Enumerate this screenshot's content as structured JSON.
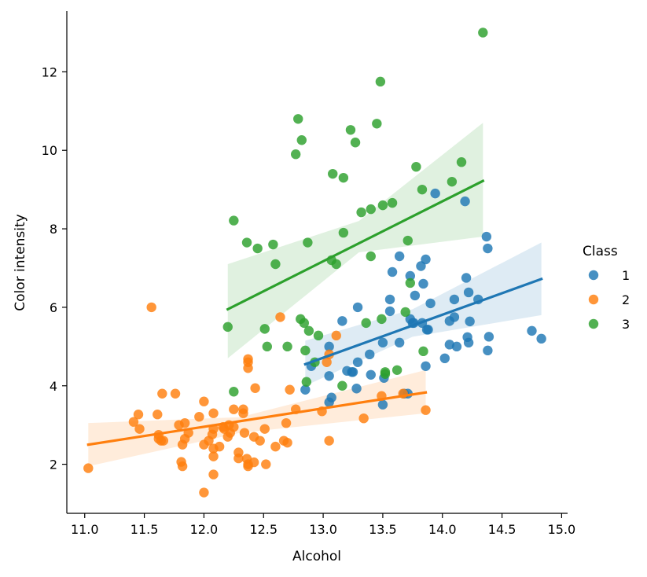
{
  "chart_data": {
    "type": "scatter",
    "title": "",
    "xlabel": "Alcohol",
    "ylabel": "Color intensity",
    "xlim": [
      10.85,
      15.05
    ],
    "ylim": [
      0.75,
      13.55
    ],
    "xticks": [
      "11.0",
      "11.5",
      "12.0",
      "12.5",
      "13.0",
      "13.5",
      "14.0",
      "14.5",
      "15.0"
    ],
    "yticks": [
      "2",
      "4",
      "6",
      "8",
      "10",
      "12"
    ],
    "xtick_values": [
      11.0,
      11.5,
      12.0,
      12.5,
      13.0,
      13.5,
      14.0,
      14.5,
      15.0
    ],
    "ytick_values": [
      2,
      4,
      6,
      8,
      10,
      12
    ],
    "grid": false,
    "legend": {
      "title": "Class",
      "placement": "right"
    },
    "series": [
      {
        "name": "1",
        "color": "#1f77b4",
        "points": [
          [
            12.85,
            3.9
          ],
          [
            12.9,
            4.5
          ],
          [
            13.05,
            4.25
          ],
          [
            13.05,
            5.0
          ],
          [
            13.07,
            3.7
          ],
          [
            13.05,
            3.58
          ],
          [
            13.16,
            5.65
          ],
          [
            13.2,
            4.38
          ],
          [
            13.24,
            4.35
          ],
          [
            13.25,
            4.35
          ],
          [
            13.28,
            3.93
          ],
          [
            13.29,
            4.6
          ],
          [
            13.29,
            6.0
          ],
          [
            13.39,
            4.8
          ],
          [
            13.4,
            4.28
          ],
          [
            13.5,
            3.52
          ],
          [
            13.51,
            4.2
          ],
          [
            13.5,
            5.1
          ],
          [
            13.56,
            5.9
          ],
          [
            13.56,
            6.2
          ],
          [
            13.58,
            6.9
          ],
          [
            13.64,
            7.3
          ],
          [
            13.64,
            5.1
          ],
          [
            13.68,
            3.8
          ],
          [
            13.71,
            3.8
          ],
          [
            13.73,
            5.7
          ],
          [
            13.73,
            6.8
          ],
          [
            13.75,
            5.6
          ],
          [
            13.77,
            6.3
          ],
          [
            13.76,
            5.6
          ],
          [
            13.82,
            7.05
          ],
          [
            13.83,
            5.6
          ],
          [
            13.84,
            6.6
          ],
          [
            13.86,
            7.22
          ],
          [
            13.86,
            4.5
          ],
          [
            13.87,
            5.43
          ],
          [
            13.88,
            5.43
          ],
          [
            13.9,
            6.1
          ],
          [
            13.94,
            8.9
          ],
          [
            14.02,
            4.7
          ],
          [
            14.06,
            5.05
          ],
          [
            14.06,
            5.65
          ],
          [
            14.1,
            5.75
          ],
          [
            14.1,
            6.2
          ],
          [
            14.12,
            5.0
          ],
          [
            14.19,
            8.7
          ],
          [
            14.2,
            6.75
          ],
          [
            14.21,
            5.24
          ],
          [
            14.22,
            6.38
          ],
          [
            14.22,
            5.1
          ],
          [
            14.23,
            5.64
          ],
          [
            14.3,
            6.2
          ],
          [
            14.37,
            7.8
          ],
          [
            14.38,
            4.9
          ],
          [
            14.38,
            7.5
          ],
          [
            14.39,
            5.25
          ],
          [
            14.75,
            5.4
          ],
          [
            14.83,
            5.2
          ]
        ],
        "fit": {
          "x": [
            12.85,
            14.83
          ],
          "y": [
            4.55,
            6.72
          ]
        },
        "ci_upper": [
          5.15,
          5.95,
          7.65
        ],
        "ci_lower": [
          4.0,
          5.25,
          5.8
        ],
        "ci_x": [
          12.85,
          13.75,
          14.83
        ]
      },
      {
        "name": "2",
        "color": "#ff7f0e",
        "points": [
          [
            11.03,
            1.9
          ],
          [
            11.41,
            3.08
          ],
          [
            11.45,
            3.27
          ],
          [
            11.46,
            2.9
          ],
          [
            11.56,
            6.0
          ],
          [
            11.61,
            3.27
          ],
          [
            11.62,
            2.65
          ],
          [
            11.62,
            2.75
          ],
          [
            11.64,
            2.6
          ],
          [
            11.65,
            3.8
          ],
          [
            11.66,
            2.6
          ],
          [
            11.76,
            3.8
          ],
          [
            11.79,
            3.0
          ],
          [
            11.81,
            2.06
          ],
          [
            11.82,
            1.95
          ],
          [
            11.82,
            2.5
          ],
          [
            11.84,
            3.05
          ],
          [
            11.84,
            2.65
          ],
          [
            11.87,
            2.8
          ],
          [
            11.96,
            3.21
          ],
          [
            12.0,
            2.5
          ],
          [
            12.0,
            3.6
          ],
          [
            12.0,
            1.28
          ],
          [
            12.04,
            2.6
          ],
          [
            12.07,
            2.76
          ],
          [
            12.08,
            2.2
          ],
          [
            12.08,
            3.3
          ],
          [
            12.08,
            1.74
          ],
          [
            12.08,
            2.4
          ],
          [
            12.08,
            2.9
          ],
          [
            12.13,
            2.45
          ],
          [
            12.16,
            2.95
          ],
          [
            12.17,
            2.9
          ],
          [
            12.2,
            2.7
          ],
          [
            12.21,
            3.0
          ],
          [
            12.22,
            2.8
          ],
          [
            12.25,
            3.4
          ],
          [
            12.25,
            2.95
          ],
          [
            12.29,
            2.3
          ],
          [
            12.29,
            2.15
          ],
          [
            12.33,
            3.4
          ],
          [
            12.33,
            3.3
          ],
          [
            12.34,
            2.8
          ],
          [
            12.36,
            2.14
          ],
          [
            12.37,
            4.45
          ],
          [
            12.37,
            4.6
          ],
          [
            12.37,
            4.68
          ],
          [
            12.37,
            1.95
          ],
          [
            12.37,
            2.0
          ],
          [
            12.42,
            2.05
          ],
          [
            12.42,
            2.7
          ],
          [
            12.43,
            3.94
          ],
          [
            12.47,
            2.6
          ],
          [
            12.51,
            2.9
          ],
          [
            12.52,
            2.0
          ],
          [
            12.6,
            2.45
          ],
          [
            12.64,
            5.75
          ],
          [
            12.67,
            2.6
          ],
          [
            12.69,
            3.05
          ],
          [
            12.7,
            2.55
          ],
          [
            12.72,
            3.9
          ],
          [
            12.77,
            3.4
          ],
          [
            12.99,
            3.35
          ],
          [
            13.03,
            4.6
          ],
          [
            13.05,
            2.6
          ],
          [
            13.05,
            4.8
          ],
          [
            13.11,
            5.28
          ],
          [
            13.34,
            3.17
          ],
          [
            13.49,
            3.74
          ],
          [
            13.67,
            3.8
          ],
          [
            13.86,
            3.38
          ]
        ],
        "fit": {
          "x": [
            11.03,
            13.86
          ],
          "y": [
            2.5,
            3.83
          ]
        },
        "ci_upper": [
          3.05,
          3.2,
          4.4
        ],
        "ci_lower": [
          1.95,
          2.8,
          3.3
        ],
        "ci_x": [
          11.03,
          12.3,
          13.86
        ]
      },
      {
        "name": "3",
        "color": "#2ca02c",
        "points": [
          [
            12.2,
            5.5
          ],
          [
            12.25,
            3.85
          ],
          [
            12.25,
            8.21
          ],
          [
            12.36,
            7.65
          ],
          [
            12.45,
            7.5
          ],
          [
            12.51,
            5.45
          ],
          [
            12.53,
            5.0
          ],
          [
            12.58,
            7.6
          ],
          [
            12.6,
            7.1
          ],
          [
            12.7,
            5.0
          ],
          [
            12.77,
            9.9
          ],
          [
            12.79,
            10.8
          ],
          [
            12.81,
            5.7
          ],
          [
            12.82,
            10.26
          ],
          [
            12.84,
            5.6
          ],
          [
            12.85,
            4.9
          ],
          [
            12.86,
            4.1
          ],
          [
            12.87,
            7.65
          ],
          [
            12.88,
            5.4
          ],
          [
            12.93,
            4.6
          ],
          [
            12.96,
            5.28
          ],
          [
            13.07,
            7.2
          ],
          [
            13.08,
            9.4
          ],
          [
            13.11,
            7.1
          ],
          [
            13.16,
            4.0
          ],
          [
            13.17,
            7.9
          ],
          [
            13.17,
            9.3
          ],
          [
            13.23,
            10.52
          ],
          [
            13.27,
            10.2
          ],
          [
            13.32,
            8.42
          ],
          [
            13.36,
            5.6
          ],
          [
            13.4,
            7.3
          ],
          [
            13.4,
            8.5
          ],
          [
            13.45,
            10.68
          ],
          [
            13.48,
            11.75
          ],
          [
            13.49,
            5.7
          ],
          [
            13.5,
            8.6
          ],
          [
            13.52,
            4.35
          ],
          [
            13.52,
            4.3
          ],
          [
            13.58,
            8.66
          ],
          [
            13.62,
            4.4
          ],
          [
            13.69,
            5.88
          ],
          [
            13.71,
            7.7
          ],
          [
            13.73,
            6.62
          ],
          [
            13.78,
            9.58
          ],
          [
            13.83,
            9.0
          ],
          [
            13.84,
            4.88
          ],
          [
            14.08,
            9.2
          ],
          [
            14.16,
            9.7
          ],
          [
            14.34,
            13.0
          ]
        ],
        "fit": {
          "x": [
            12.2,
            14.34
          ],
          "y": [
            5.95,
            9.22
          ]
        },
        "ci_upper": [
          7.1,
          8.2,
          10.7
        ],
        "ci_lower": [
          4.7,
          7.4,
          7.8
        ],
        "ci_x": [
          12.2,
          13.3,
          14.34
        ]
      }
    ]
  }
}
